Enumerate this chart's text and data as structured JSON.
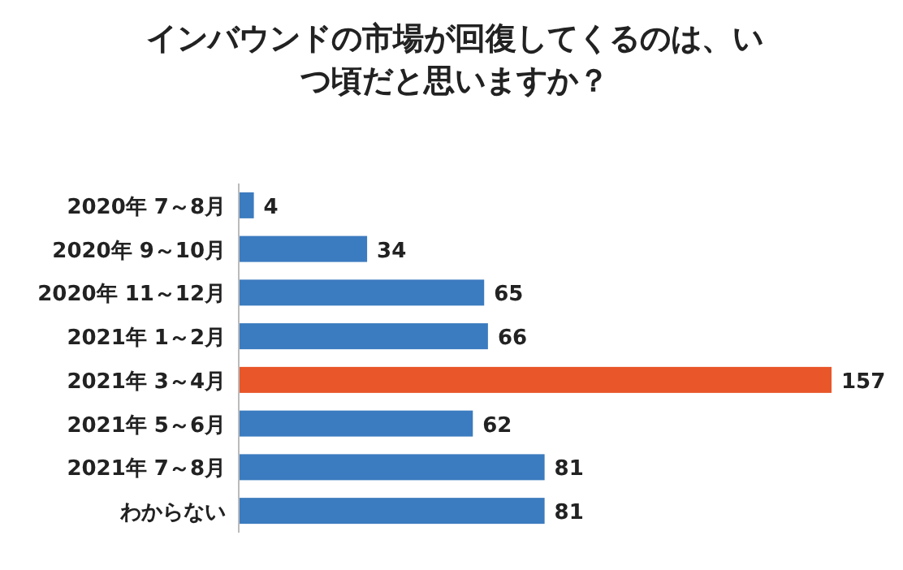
{
  "chart_data": {
    "type": "bar",
    "orientation": "horizontal",
    "title": "インバウンドの市場が回復してくるのは、いつ頃だと思いますか？",
    "categories": [
      "2020年 7～8月",
      "2020年 9～10月",
      "2020年 11～12月",
      "2021年 1～2月",
      "2021年 3～4月",
      "2021年 5～6月",
      "2021年 7～8月",
      "わからない"
    ],
    "values": [
      4,
      34,
      65,
      66,
      157,
      62,
      81,
      81
    ],
    "colors": [
      "#3b7bbf",
      "#3b7bbf",
      "#3b7bbf",
      "#3b7bbf",
      "#e8562a",
      "#3b7bbf",
      "#3b7bbf",
      "#3b7bbf"
    ],
    "data_labels": true
  }
}
